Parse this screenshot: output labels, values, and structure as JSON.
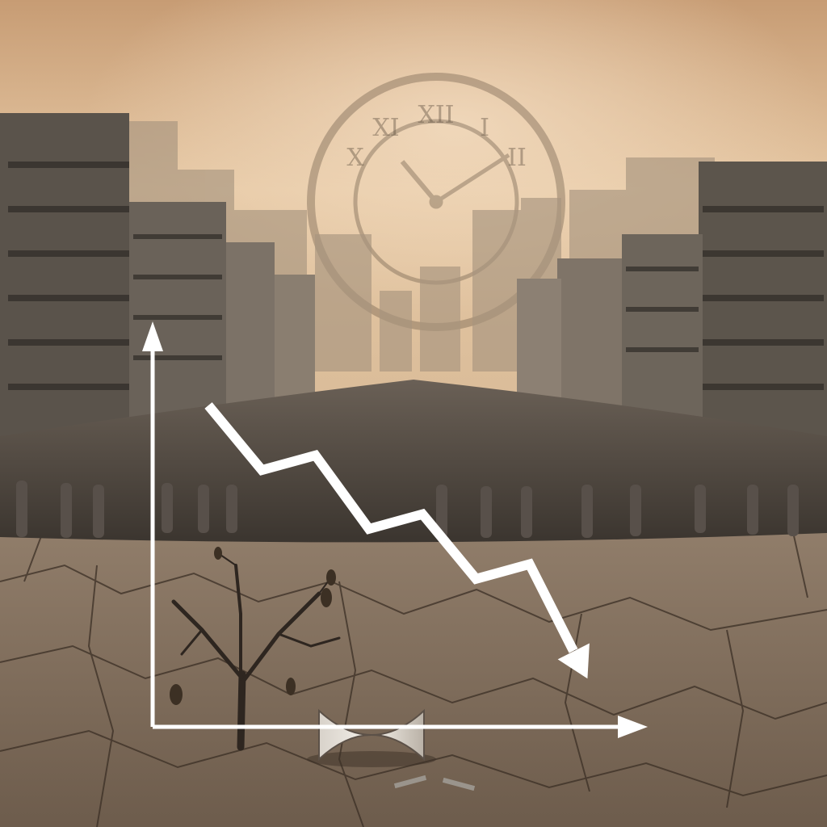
{
  "image": {
    "kind": "conceptual illustration",
    "palette": {
      "sky_top": "#caa07a",
      "sky_bottom": "#e9cfae",
      "haze": "#dcc0a0",
      "building_dark": "#4e4a44",
      "building_mid": "#7a7166",
      "crowd": "#3f3a34",
      "ground": "#8d7a66",
      "ground_crack": "#3a2e24",
      "overlay_white": "#ffffff"
    },
    "clock_numerals": [
      "XII",
      "I",
      "II",
      "X",
      "XI"
    ]
  },
  "chart_data": {
    "type": "line",
    "title": "",
    "xlabel": "",
    "ylabel": "",
    "trend": "declining",
    "series": [
      {
        "x": [
          0,
          1,
          2,
          3,
          4,
          5,
          6,
          7
        ],
        "y": [
          100,
          78,
          83,
          58,
          63,
          41,
          46,
          10
        ]
      }
    ]
  }
}
